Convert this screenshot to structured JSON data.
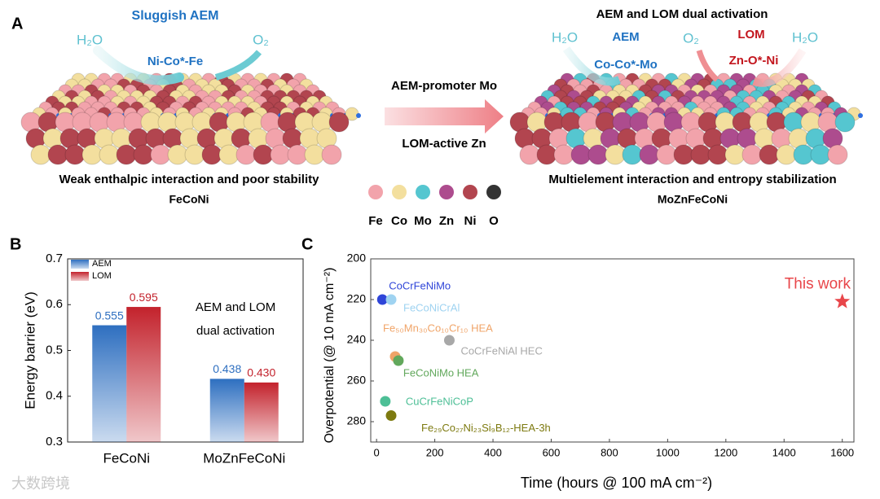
{
  "diagram": {
    "panel_label": "A",
    "left_title": "Sluggish AEM",
    "left_reactant": "H₂O",
    "left_product": "O₂",
    "left_site": "Ni-Co*-Fe",
    "left_caption": "Weak enthalpic interaction and poor stability",
    "left_name": "FeCoNi",
    "arrow_top": "AEM-promoter Mo",
    "arrow_bottom": "LOM-active Zn",
    "right_title": "AEM and LOM dual activation",
    "right_reactant_left": "H₂O",
    "right_aem": "AEM",
    "right_product": "O₂",
    "right_lom": "LOM",
    "right_reactant_right": "H₂O",
    "right_site_aem": "Co-Co*-Mo",
    "right_site_lom": "Zn-O*-Ni",
    "right_caption": "Multielement interaction and entropy stabilization",
    "right_name": "MoZnFeCoNi",
    "legend": [
      {
        "label": "Fe",
        "color": "#f2a3ab"
      },
      {
        "label": "Co",
        "color": "#f3df9e"
      },
      {
        "label": "Mo",
        "color": "#55c6d0"
      },
      {
        "label": "Zn",
        "color": "#ad4c8e"
      },
      {
        "label": "Ni",
        "color": "#b2454f"
      },
      {
        "label": "O",
        "color": "#333333"
      }
    ],
    "watermark": "大数跨境"
  },
  "chart_data": [
    {
      "type": "bar",
      "panel_label": "B",
      "ylabel": "Energy barrier (eV)",
      "categories": [
        "FeCoNi",
        "MoZnFeCoNi"
      ],
      "series": [
        {
          "name": "AEM",
          "color": "#2e6fc0",
          "values": [
            0.555,
            0.438
          ],
          "value_labels": [
            "0.555",
            "0.438"
          ]
        },
        {
          "name": "LOM",
          "color": "#c3222c",
          "values": [
            0.595,
            0.43
          ],
          "value_labels": [
            "0.595",
            "0.430"
          ]
        }
      ],
      "annotation": [
        "AEM and LOM",
        "dual activation"
      ],
      "ylim": [
        0.3,
        0.7
      ],
      "yticks": [
        0.3,
        0.4,
        0.5,
        0.6,
        0.7
      ],
      "legend": "upper left"
    },
    {
      "type": "scatter",
      "panel_label": "C",
      "xlabel": "Time (hours @ 100 mA cm⁻²)",
      "ylabel": "Overpotential (@ 10 mA cm⁻²)",
      "xlim": [
        -20,
        1640
      ],
      "xticks": [
        0,
        200,
        400,
        600,
        800,
        1000,
        1200,
        1400,
        1600
      ],
      "ylim": [
        200,
        290
      ],
      "yticks": [
        200,
        220,
        240,
        260,
        280
      ],
      "y_inverted": true,
      "series": [
        {
          "name": "CoCrFeNiMo",
          "color": "#2f45d8",
          "x": [
            20
          ],
          "values": [
            220
          ]
        },
        {
          "name": "FeCoNiCrAl",
          "color": "#9fd3f1",
          "x": [
            50
          ],
          "values": [
            220
          ]
        },
        {
          "name": "Fe₅₀Mn₃₀Co₁₀Cr₁₀ HEA",
          "color": "#f0a468",
          "x": [
            64
          ],
          "values": [
            248
          ]
        },
        {
          "name": "CoCrFeNiAl HEC",
          "color": "#a8a8a8",
          "x": [
            250
          ],
          "values": [
            240
          ]
        },
        {
          "name": "FeCoNiMo HEA",
          "color": "#62a85c",
          "x": [
            75
          ],
          "values": [
            250
          ]
        },
        {
          "name": "CuCrFeNiCoP",
          "color": "#4dbf96",
          "x": [
            30
          ],
          "values": [
            270
          ]
        },
        {
          "name": "Fe₂₉Co₂₇Ni₂₃Si₉B₁₂-HEA-3h",
          "color": "#7d7a10",
          "x": [
            50
          ],
          "values": [
            277
          ]
        },
        {
          "name": "This work",
          "color": "#e8464a",
          "x": [
            1600
          ],
          "values": [
            221
          ],
          "marker": "star"
        }
      ]
    }
  ]
}
